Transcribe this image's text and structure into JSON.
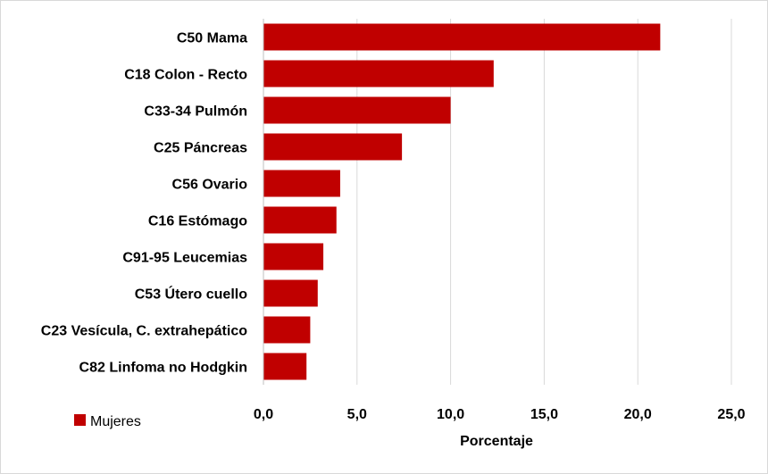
{
  "chart_data": {
    "type": "bar",
    "orientation": "horizontal",
    "categories": [
      "C50 Mama",
      "C18 Colon - Recto",
      "C33-34 Pulmón",
      "C25 Páncreas",
      "C56 Ovario",
      "C16 Estómago",
      "C91-95 Leucemias",
      "C53 Útero cuello",
      "C23 Vesícula, C. extrahepático",
      "C82 Linfoma no Hodgkin"
    ],
    "series": [
      {
        "name": "Mujeres",
        "values": [
          21.2,
          12.3,
          10.0,
          7.4,
          4.1,
          3.9,
          3.2,
          2.9,
          2.5,
          2.3
        ]
      }
    ],
    "title": "",
    "xlabel": "Porcentaje",
    "ylabel": "",
    "xlim": [
      0,
      25
    ],
    "xticks": [
      "0,0",
      "5,0",
      "10,0",
      "15,0",
      "20,0",
      "25,0"
    ],
    "grid": true,
    "legend_position": "bottom-left",
    "bar_color": "#c00000"
  }
}
